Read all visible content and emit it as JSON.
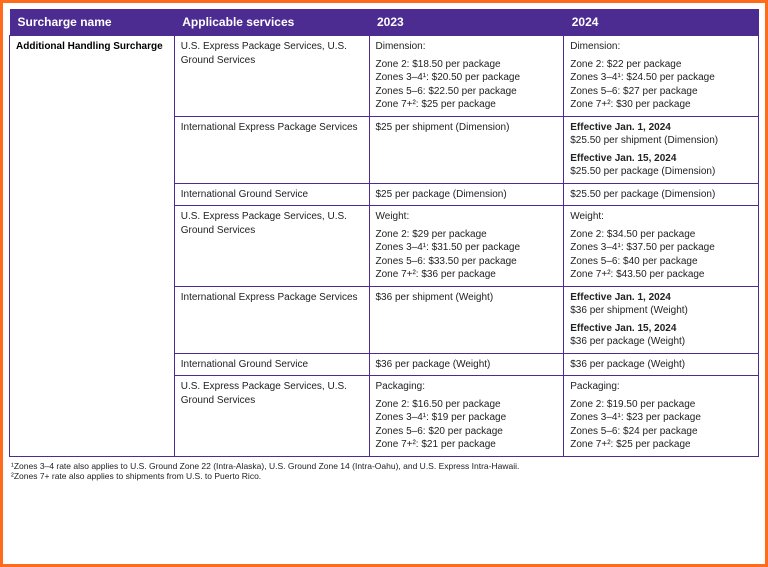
{
  "colors": {
    "border_outer": "#ff6b1a",
    "header_bg": "#4d2c92",
    "header_text": "#ffffff",
    "cell_border": "#4d2c92",
    "text": "#222222"
  },
  "columns": [
    {
      "key": "name",
      "label": "Surcharge name",
      "width_pct": 22
    },
    {
      "key": "service",
      "label": "Applicable services",
      "width_pct": 26
    },
    {
      "key": "y2023",
      "label": "2023",
      "width_pct": 26
    },
    {
      "key": "y2024",
      "label": "2024",
      "width_pct": 26
    }
  ],
  "surcharge_name": "Additional Handling Surcharge",
  "rows": [
    {
      "service": "U.S. Express Package Services, U.S. Ground Services",
      "y2023": {
        "heading": "Dimension:",
        "lines": [
          "Zone 2: $18.50 per package",
          "Zones 3–4¹: $20.50 per package",
          "Zones 5–6: $22.50 per package",
          "Zone 7+²: $25 per package"
        ]
      },
      "y2024": {
        "heading": "Dimension:",
        "lines": [
          "Zone 2: $22 per package",
          "Zones 3–4¹: $24.50 per package",
          "Zones 5–6: $27 per package",
          "Zone 7+²: $30 per package"
        ]
      }
    },
    {
      "service": "International Express Package Services",
      "y2023": {
        "heading": "",
        "lines": [
          "$25 per shipment (Dimension)"
        ]
      },
      "y2024": {
        "groups": [
          {
            "bold": "Effective Jan. 1, 2024",
            "line": "$25.50 per shipment (Dimension)"
          },
          {
            "bold": "Effective Jan. 15, 2024",
            "line": "$25.50 per package (Dimension)"
          }
        ]
      }
    },
    {
      "service": "International Ground Service",
      "y2023": {
        "heading": "",
        "lines": [
          "$25 per package (Dimension)"
        ]
      },
      "y2024": {
        "heading": "",
        "lines": [
          "$25.50 per package (Dimension)"
        ]
      }
    },
    {
      "service": "U.S. Express Package Services, U.S. Ground Services",
      "y2023": {
        "heading": "Weight:",
        "lines": [
          "Zone 2: $29 per package",
          "Zones 3–4¹: $31.50 per package",
          "Zones 5–6: $33.50 per package",
          "Zone 7+²: $36 per package"
        ]
      },
      "y2024": {
        "heading": "Weight:",
        "lines": [
          "Zone 2: $34.50 per package",
          "Zones 3–4¹: $37.50 per package",
          "Zones 5–6: $40 per package",
          "Zone 7+²: $43.50 per package"
        ]
      }
    },
    {
      "service": "International Express Package Services",
      "y2023": {
        "heading": "",
        "lines": [
          "$36 per shipment (Weight)"
        ]
      },
      "y2024": {
        "groups": [
          {
            "bold": "Effective Jan. 1, 2024",
            "line": "$36 per shipment (Weight)"
          },
          {
            "bold": "Effective Jan. 15, 2024",
            "line": "$36 per package (Weight)"
          }
        ]
      }
    },
    {
      "service": "International Ground Service",
      "y2023": {
        "heading": "",
        "lines": [
          "$36 per package (Weight)"
        ]
      },
      "y2024": {
        "heading": "",
        "lines": [
          "$36 per package (Weight)"
        ]
      }
    },
    {
      "service": "U.S. Express Package Services, U.S. Ground Services",
      "y2023": {
        "heading": "Packaging:",
        "lines": [
          "Zone 2: $16.50 per package",
          "Zones 3–4¹: $19 per package",
          "Zones 5–6: $20 per package",
          "Zone 7+²: $21 per package"
        ]
      },
      "y2024": {
        "heading": "Packaging:",
        "lines": [
          "Zone 2: $19.50 per package",
          "Zones 3–4¹: $23 per package",
          "Zones 5–6: $24 per package",
          "Zone 7+²: $25 per package"
        ]
      }
    }
  ],
  "footnotes": [
    "¹Zones 3–4 rate also applies to U.S. Ground Zone 22 (Intra-Alaska), U.S. Ground Zone 14 (Intra-Oahu), and U.S. Express Intra-Hawaii.",
    "²Zones 7+ rate also applies to shipments from U.S. to Puerto Rico."
  ]
}
